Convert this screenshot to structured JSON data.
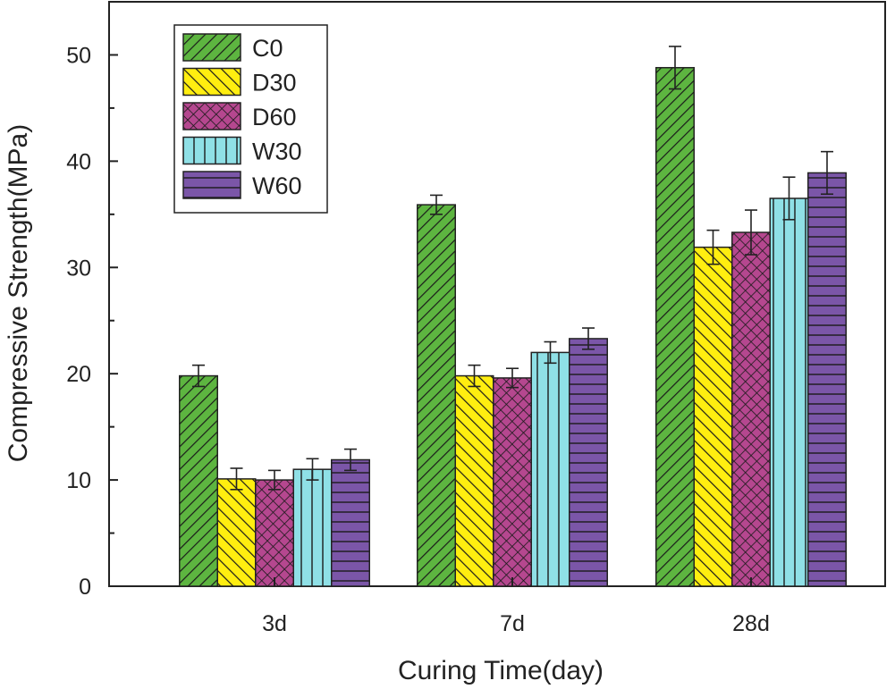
{
  "chart_data": {
    "type": "bar",
    "xlabel": "Curing Time(day)",
    "ylabel": "Compressive Strength(MPa)",
    "categories": [
      "3d",
      "7d",
      "28d"
    ],
    "ylim": [
      0,
      55
    ],
    "yticks": [
      0,
      10,
      20,
      30,
      40,
      50
    ],
    "legend_position": "top-left",
    "series": [
      {
        "name": "C0",
        "color": "#5db540",
        "pattern": "diag-up",
        "values": [
          19.8,
          35.9,
          48.8
        ],
        "errors": [
          1.0,
          0.9,
          2.0
        ]
      },
      {
        "name": "D30",
        "color": "#ffee10",
        "pattern": "diag-down",
        "values": [
          10.1,
          19.8,
          31.9
        ],
        "errors": [
          1.0,
          1.0,
          1.6
        ]
      },
      {
        "name": "D60",
        "color": "#b5478f",
        "pattern": "crosshatch",
        "values": [
          10.0,
          19.6,
          33.3
        ],
        "errors": [
          0.9,
          0.9,
          2.1
        ]
      },
      {
        "name": "W30",
        "color": "#8fe0e6",
        "pattern": "vertical",
        "values": [
          11.0,
          22.0,
          36.5
        ],
        "errors": [
          1.0,
          1.0,
          2.0
        ]
      },
      {
        "name": "W60",
        "color": "#7b56a8",
        "pattern": "horizontal",
        "values": [
          11.9,
          23.3,
          38.9
        ],
        "errors": [
          1.0,
          1.0,
          2.0
        ]
      }
    ]
  }
}
